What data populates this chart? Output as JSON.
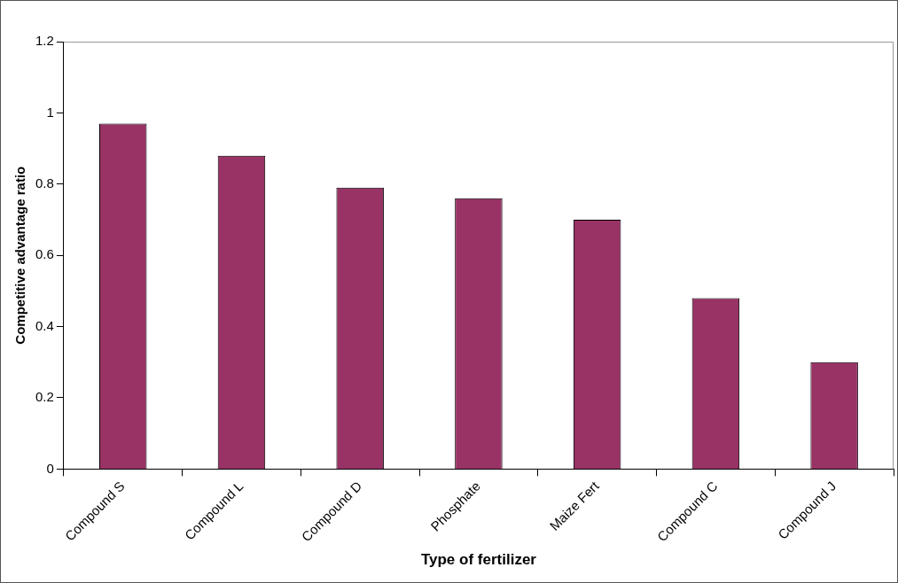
{
  "chart_data": {
    "type": "bar",
    "xlabel": "Type of fertilizer",
    "ylabel": "Competitive advantage ratio",
    "categories": [
      "Compound S",
      "Compound L",
      "Compound D",
      "Phosphate",
      "Maize Fert",
      "Compound C",
      "Compound J"
    ],
    "values": [
      0.97,
      0.88,
      0.79,
      0.76,
      0.7,
      0.48,
      0.3
    ],
    "color": "#993366",
    "ylim": [
      0,
      1.2
    ],
    "yticks": [
      0,
      0.2,
      0.4,
      0.6,
      0.8,
      1,
      1.2
    ],
    "grid": false,
    "legend": false
  }
}
